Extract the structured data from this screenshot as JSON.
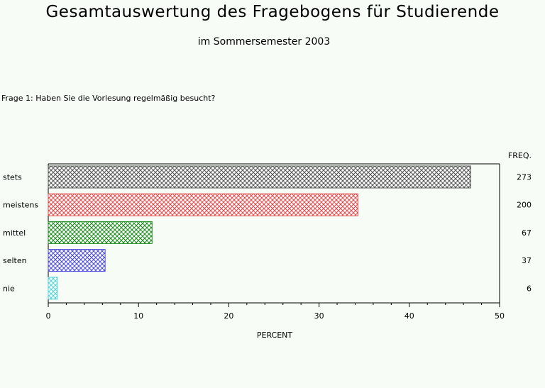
{
  "header": {
    "title": "Gesamtauswertung des Fragebogens für Studierende",
    "subtitle": "im Sommersemester 2003"
  },
  "question": "Frage 1: Haben Sie die Vorlesung regelmäßig besucht?",
  "chart_data": {
    "type": "bar",
    "orientation": "horizontal",
    "categories": [
      "stets",
      "meistens",
      "mittel",
      "selten",
      "nie"
    ],
    "values": [
      46.8,
      34.3,
      11.5,
      6.3,
      1.0
    ],
    "freq": [
      "273",
      "200",
      "67",
      "37",
      "6"
    ],
    "freq_label": "FREQ.",
    "xlabel": "PERCENT",
    "xlim": [
      0,
      50
    ],
    "xticks": [
      "0",
      "10",
      "20",
      "30",
      "40",
      "50"
    ],
    "colors": [
      "#555555",
      "#e84a4a",
      "#1d8a1d",
      "#4a4ae0",
      "#4fd3d3"
    ],
    "grid": false
  }
}
